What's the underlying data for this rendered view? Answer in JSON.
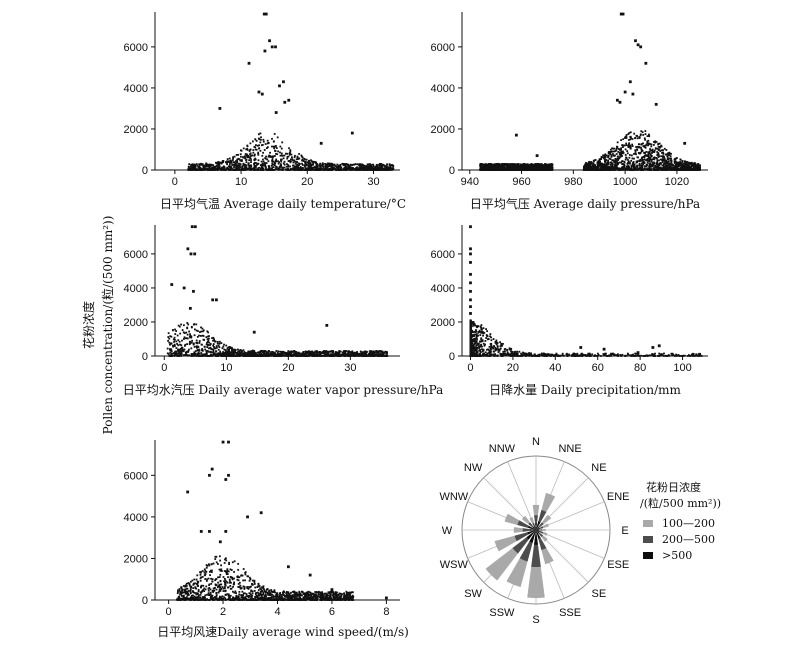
{
  "shared": {
    "ylabel_cn": "花粉浓度",
    "ylabel_en": "Pollen concentration/(粒/(500 mm²))"
  },
  "chart_data": [
    {
      "id": "temperature",
      "type": "scatter",
      "xlabel": "日平均气温 Average daily temperature/°C",
      "xlim": [
        -3,
        34
      ],
      "xticks": [
        0,
        10,
        20,
        30
      ],
      "ylim": [
        0,
        7700
      ],
      "yticks": [
        0,
        2000,
        4000,
        6000
      ],
      "notable_points": [
        [
          13.5,
          7600
        ],
        [
          13.8,
          7600
        ],
        [
          14.3,
          6300
        ],
        [
          14.7,
          6000
        ],
        [
          15.2,
          6000
        ],
        [
          11.2,
          5200
        ],
        [
          13.6,
          5800
        ],
        [
          16.4,
          4300
        ],
        [
          15.8,
          4100
        ],
        [
          12.7,
          3800
        ],
        [
          13.2,
          3700
        ],
        [
          17.2,
          3400
        ],
        [
          16.6,
          3300
        ],
        [
          6.8,
          3000
        ],
        [
          15.3,
          2800
        ],
        [
          26.8,
          1800
        ],
        [
          22.1,
          1300
        ]
      ],
      "bulk": {
        "x_range": [
          2,
          33
        ],
        "peak_x": 14,
        "peak_y": 1900,
        "tail_y": 300
      }
    },
    {
      "id": "pressure",
      "type": "scatter",
      "xlabel": "日平均气压 Average daily pressure/hPa",
      "xlim": [
        937,
        1032
      ],
      "xticks": [
        940,
        960,
        980,
        1000,
        1020
      ],
      "ylim": [
        0,
        7700
      ],
      "yticks": [
        0,
        2000,
        4000,
        6000
      ],
      "notable_points": [
        [
          998.5,
          7600
        ],
        [
          999.2,
          7600
        ],
        [
          1004,
          6300
        ],
        [
          1005,
          6100
        ],
        [
          1006,
          6000
        ],
        [
          1008,
          5200
        ],
        [
          1002,
          4300
        ],
        [
          1000,
          3800
        ],
        [
          1003,
          3700
        ],
        [
          997,
          3400
        ],
        [
          998,
          3300
        ],
        [
          1012,
          3200
        ],
        [
          958,
          1700
        ],
        [
          966,
          700
        ],
        [
          1023,
          1300
        ]
      ],
      "bulk": {
        "segments": [
          [
            944,
            972
          ],
          [
            984,
            1029
          ]
        ],
        "peak_x": 1005,
        "peak_y": 2000,
        "tail_y": 300
      }
    },
    {
      "id": "vapor",
      "type": "scatter",
      "xlabel": "日平均水汽压 Daily average water vapor pressure/hPa",
      "xlim": [
        -1.5,
        38
      ],
      "xticks": [
        0,
        10,
        20,
        30
      ],
      "ylim": [
        0,
        7700
      ],
      "yticks": [
        0,
        2000,
        4000,
        6000
      ],
      "notable_points": [
        [
          4.5,
          7600
        ],
        [
          5.0,
          7600
        ],
        [
          3.8,
          6300
        ],
        [
          4.3,
          6000
        ],
        [
          4.9,
          6000
        ],
        [
          1.2,
          4200
        ],
        [
          3.2,
          4000
        ],
        [
          4.7,
          3800
        ],
        [
          7.8,
          3300
        ],
        [
          8.4,
          3300
        ],
        [
          4.2,
          2800
        ],
        [
          26.2,
          1800
        ],
        [
          14.5,
          1400
        ]
      ],
      "bulk": {
        "x_range": [
          0.5,
          36
        ],
        "peak_x": 4,
        "peak_y": 2000,
        "tail_y": 300
      }
    },
    {
      "id": "precipitation",
      "type": "scatter",
      "xlabel": "日降水量 Daily precipitation/mm",
      "xlim": [
        -4,
        112
      ],
      "xticks": [
        0,
        20,
        40,
        60,
        80,
        100
      ],
      "ylim": [
        0,
        7700
      ],
      "yticks": [
        0,
        2000,
        4000,
        6000
      ],
      "notable_points": [
        [
          0,
          7600
        ],
        [
          0,
          6300
        ],
        [
          0,
          6000
        ],
        [
          0,
          5500
        ],
        [
          0,
          4800
        ],
        [
          0,
          4300
        ],
        [
          0,
          3800
        ],
        [
          0,
          3300
        ],
        [
          0,
          2900
        ],
        [
          0,
          2500
        ],
        [
          1.5,
          1200
        ],
        [
          2.8,
          1000
        ],
        [
          5.5,
          900
        ],
        [
          12,
          800
        ],
        [
          52,
          500
        ],
        [
          63,
          400
        ],
        [
          86,
          500
        ],
        [
          89,
          600
        ],
        [
          79,
          200
        ],
        [
          105,
          100
        ],
        [
          108,
          100
        ]
      ],
      "bulk": {
        "x_range": [
          0,
          110
        ],
        "peak_x": 0,
        "peak_y": 2100,
        "tail_y": 150
      }
    },
    {
      "id": "wind",
      "type": "scatter",
      "xlabel": "日平均风速Daily average wind speed/(m/s)",
      "xlim": [
        -0.5,
        8.5
      ],
      "xticks": [
        0,
        2,
        4,
        6,
        8
      ],
      "ylim": [
        0,
        7700
      ],
      "yticks": [
        0,
        2000,
        4000,
        6000
      ],
      "notable_points": [
        [
          2.0,
          7600
        ],
        [
          2.2,
          7600
        ],
        [
          1.6,
          6300
        ],
        [
          1.5,
          6000
        ],
        [
          2.2,
          6000
        ],
        [
          2.1,
          5800
        ],
        [
          0.7,
          5200
        ],
        [
          3.4,
          4200
        ],
        [
          2.9,
          4000
        ],
        [
          1.2,
          3300
        ],
        [
          1.5,
          3300
        ],
        [
          2.1,
          3300
        ],
        [
          1.9,
          2800
        ],
        [
          8.0,
          100
        ],
        [
          6.0,
          500
        ],
        [
          5.2,
          1200
        ],
        [
          4.4,
          1600
        ]
      ],
      "bulk": {
        "x_range": [
          0.3,
          6.8
        ],
        "peak_x": 2,
        "peak_y": 2200,
        "tail_y": 400
      }
    },
    {
      "id": "wind_rose",
      "type": "rose",
      "directions": [
        "N",
        "NNE",
        "NE",
        "ENE",
        "E",
        "ESE",
        "SE",
        "SSE",
        "S",
        "SSW",
        "SW",
        "WSW",
        "W",
        "WNW",
        "NW",
        "NNW"
      ],
      "legend_title_cn": "花粉日浓度",
      "legend_title_unit": "/(粒/500 mm²))",
      "series": [
        {
          "name": "100—200",
          "color": "#a9a9a9",
          "values": [
            0.34,
            0.52,
            0.26,
            0.18,
            0.13,
            0.16,
            0.2,
            0.48,
            0.92,
            0.8,
            0.86,
            0.58,
            0.3,
            0.44,
            0.24,
            0.18
          ]
        },
        {
          "name": "200—500",
          "color": "#4d4d4d",
          "values": [
            0.2,
            0.28,
            0.13,
            0.1,
            0.08,
            0.1,
            0.12,
            0.28,
            0.5,
            0.44,
            0.4,
            0.3,
            0.18,
            0.26,
            0.13,
            0.1
          ]
        },
        {
          "name": ">500",
          "color": "#0d0d0d",
          "values": [
            0.09,
            0.12,
            0.05,
            0.05,
            0.04,
            0.05,
            0.06,
            0.12,
            0.2,
            0.18,
            0.16,
            0.12,
            0.08,
            0.11,
            0.06,
            0.05
          ]
        }
      ]
    }
  ]
}
